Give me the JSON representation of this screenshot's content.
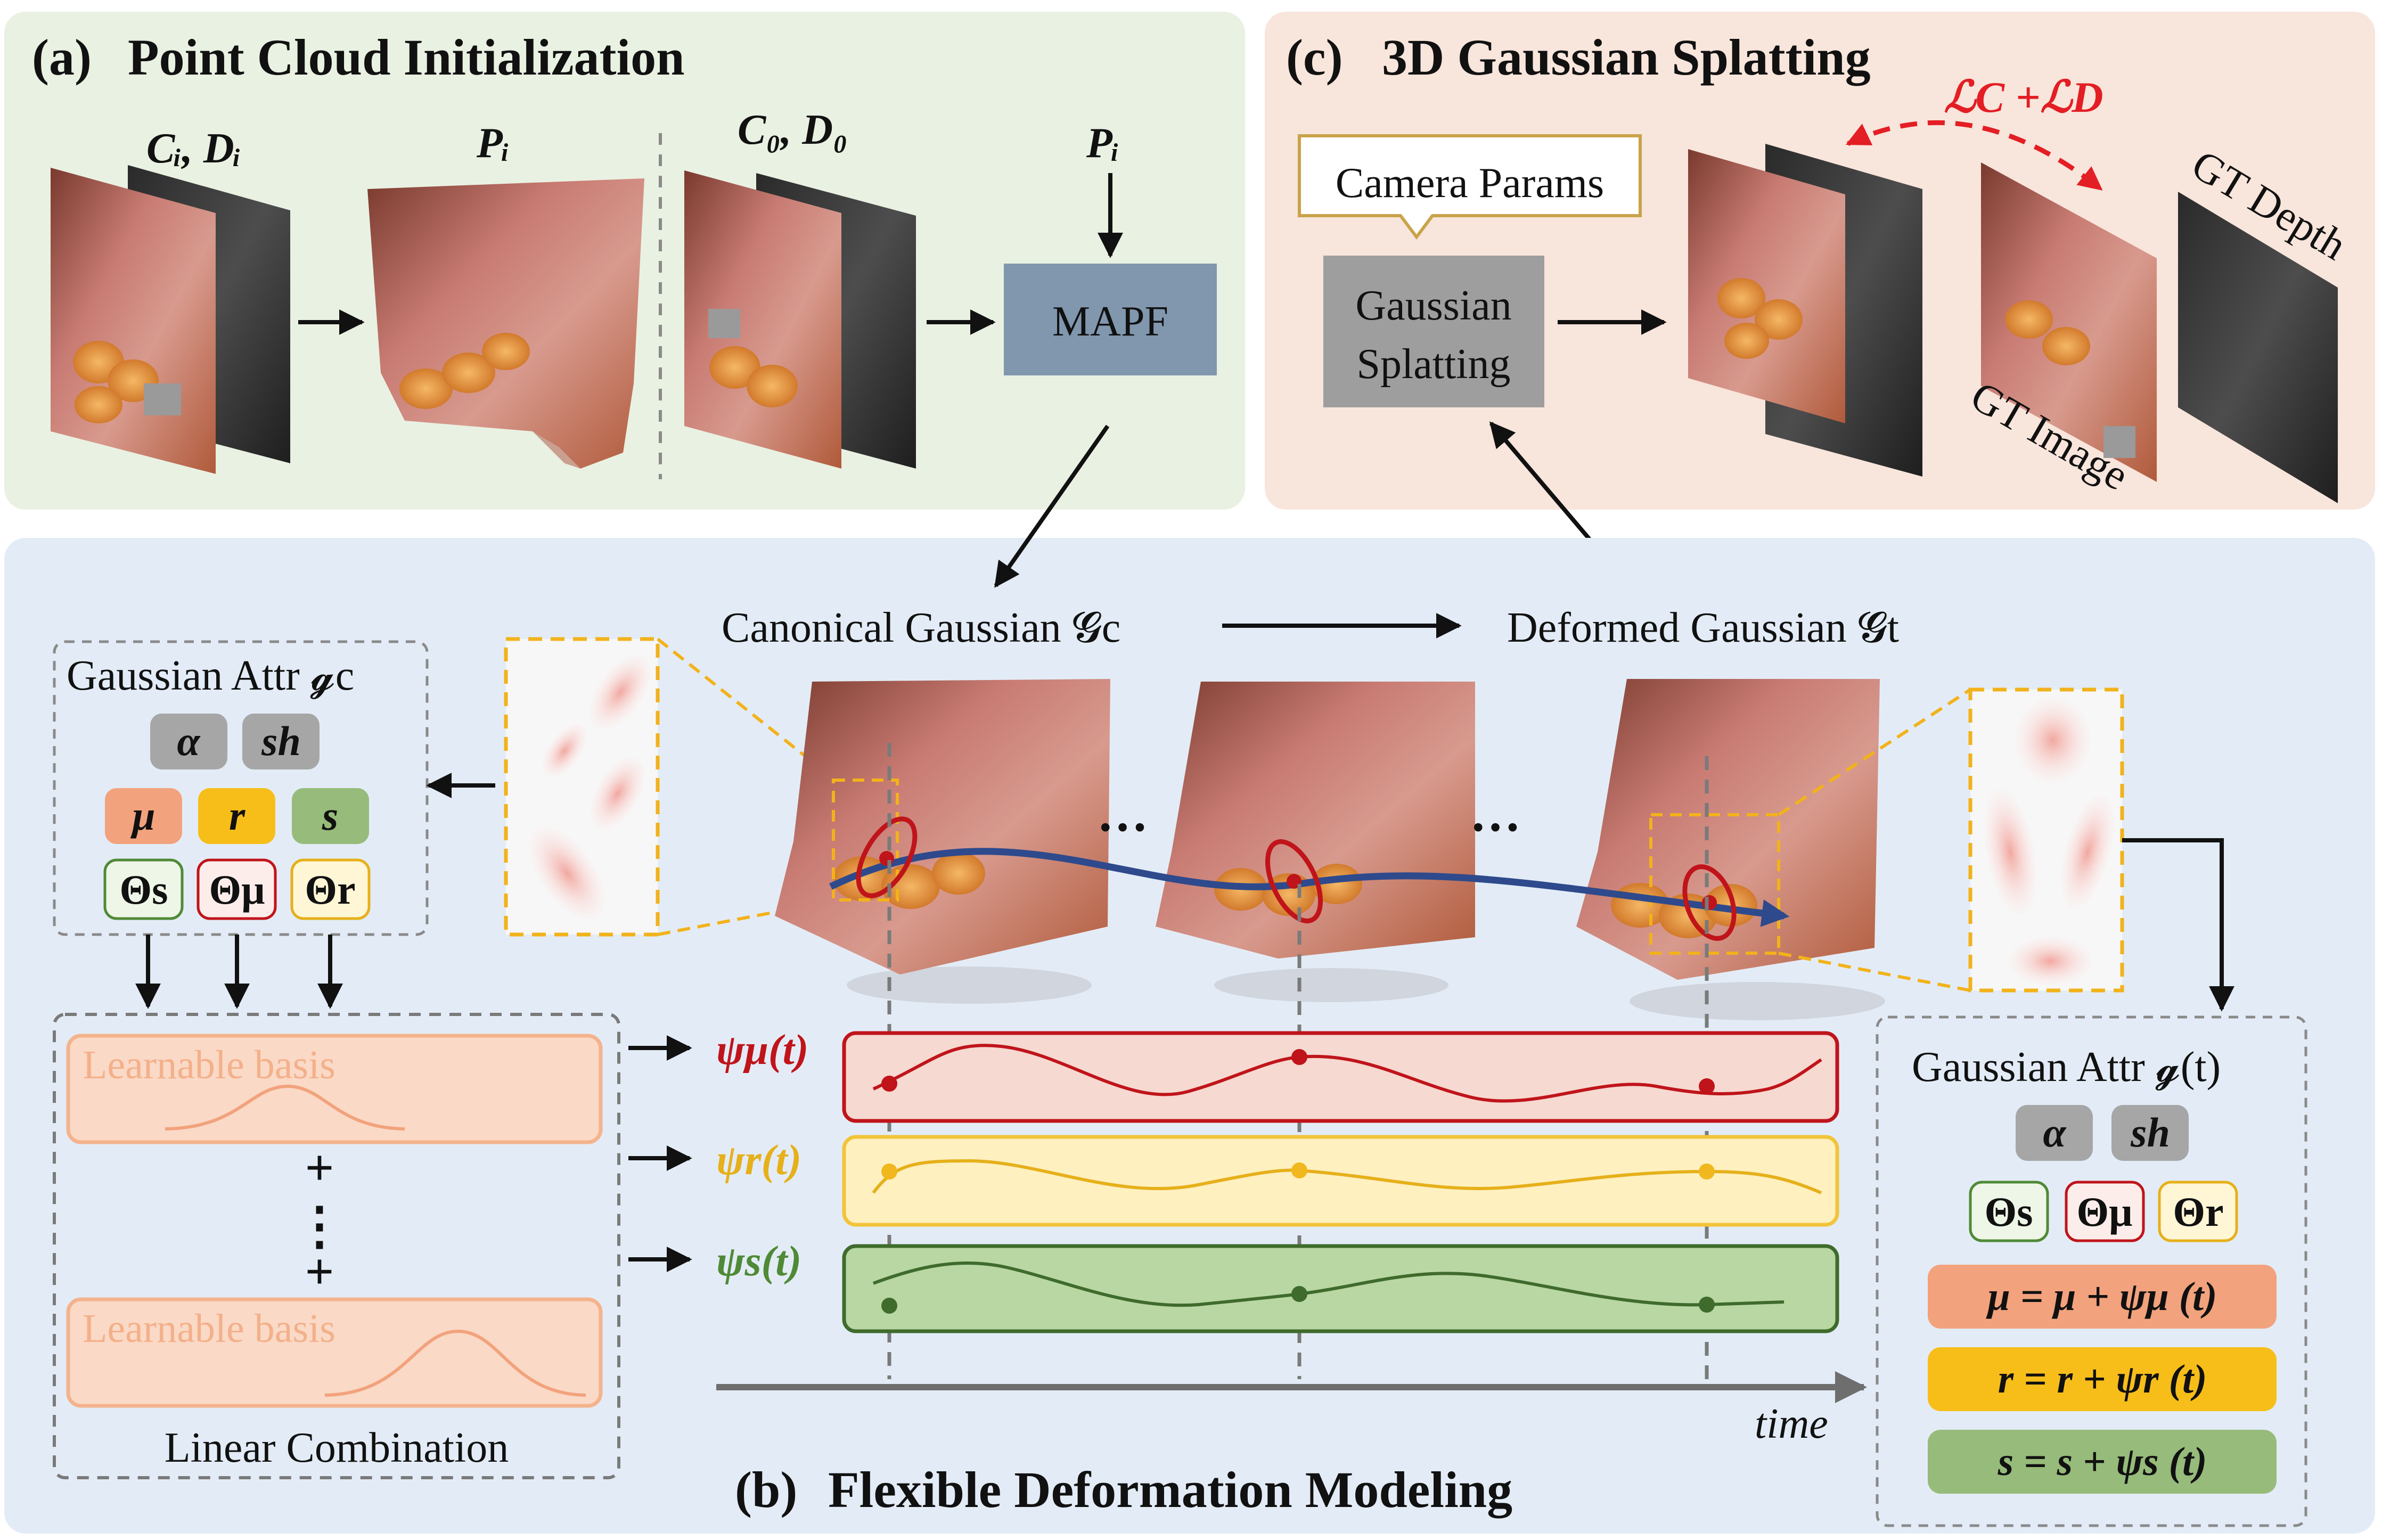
{
  "panels": {
    "a": {
      "tag": "(a)",
      "title": "Point Cloud Initialization"
    },
    "b": {
      "tag": "(b)",
      "title": "Flexible Deformation Modeling"
    },
    "c": {
      "tag": "(c)",
      "title": "3D Gaussian Splatting"
    }
  },
  "panel_a": {
    "input_label": "Cᵢ, Dᵢ",
    "pointcloud_label": "Pᵢ",
    "canonical_input_label": "C₀, D₀",
    "mapf_input_label": "Pᵢ",
    "mapf_label": "MAPF"
  },
  "panel_c": {
    "camera_params": "Camera Params",
    "splatting_line1": "Gaussian",
    "splatting_line2": "Splatting",
    "loss_label": "ℒC +ℒD",
    "gt_depth": "GT Depth",
    "gt_image": "GT Image"
  },
  "panel_b": {
    "canonical_label": "Canonical Gaussian 𝓖c",
    "deformed_label": "Deformed Gaussian 𝓖t",
    "dots": "…",
    "attr_left_title": "Gaussian Attr 𝓰c",
    "attr_right_title": "Gaussian Attr 𝓰(t)",
    "chips_left": {
      "alpha": "α",
      "sh": "sh",
      "mu": "μ",
      "r": "r",
      "s": "s",
      "theta_s": "Θs",
      "theta_mu": "Θμ",
      "theta_r": "Θr"
    },
    "chips_right": {
      "alpha": "α",
      "sh": "sh",
      "theta_s": "Θs",
      "theta_mu": "Θμ",
      "theta_r": "Θr"
    },
    "basis_1": "Learnable basis",
    "basis_2": "Learnable basis",
    "plus": "+",
    "vdots": "⋮",
    "linear_combination": "Linear Combination",
    "psi_mu": "ψμ(t)",
    "psi_r": "ψr(t)",
    "psi_s": "ψs(t)",
    "time_label": "time",
    "eq_mu": "μ = μ + ψμ (t)",
    "eq_r": "r = r + ψr (t)",
    "eq_s": "s = s + ψs (t)"
  },
  "colors": {
    "panel_a_bg": "#E9F1E2",
    "panel_b_bg": "#E3ECF6",
    "panel_c_bg": "#F8E5DB",
    "red": "#C0141B",
    "yellow": "#E6B01A",
    "green": "#4F8A36",
    "blue_track": "#2E4A8C",
    "mapf": "#8097AE",
    "splat": "#9E9E9E",
    "chip_gray": "#A6A6A6",
    "chip_orange": "#F2A27C",
    "chip_yellow": "#F7BE1A",
    "chip_green": "#96BB7A"
  }
}
